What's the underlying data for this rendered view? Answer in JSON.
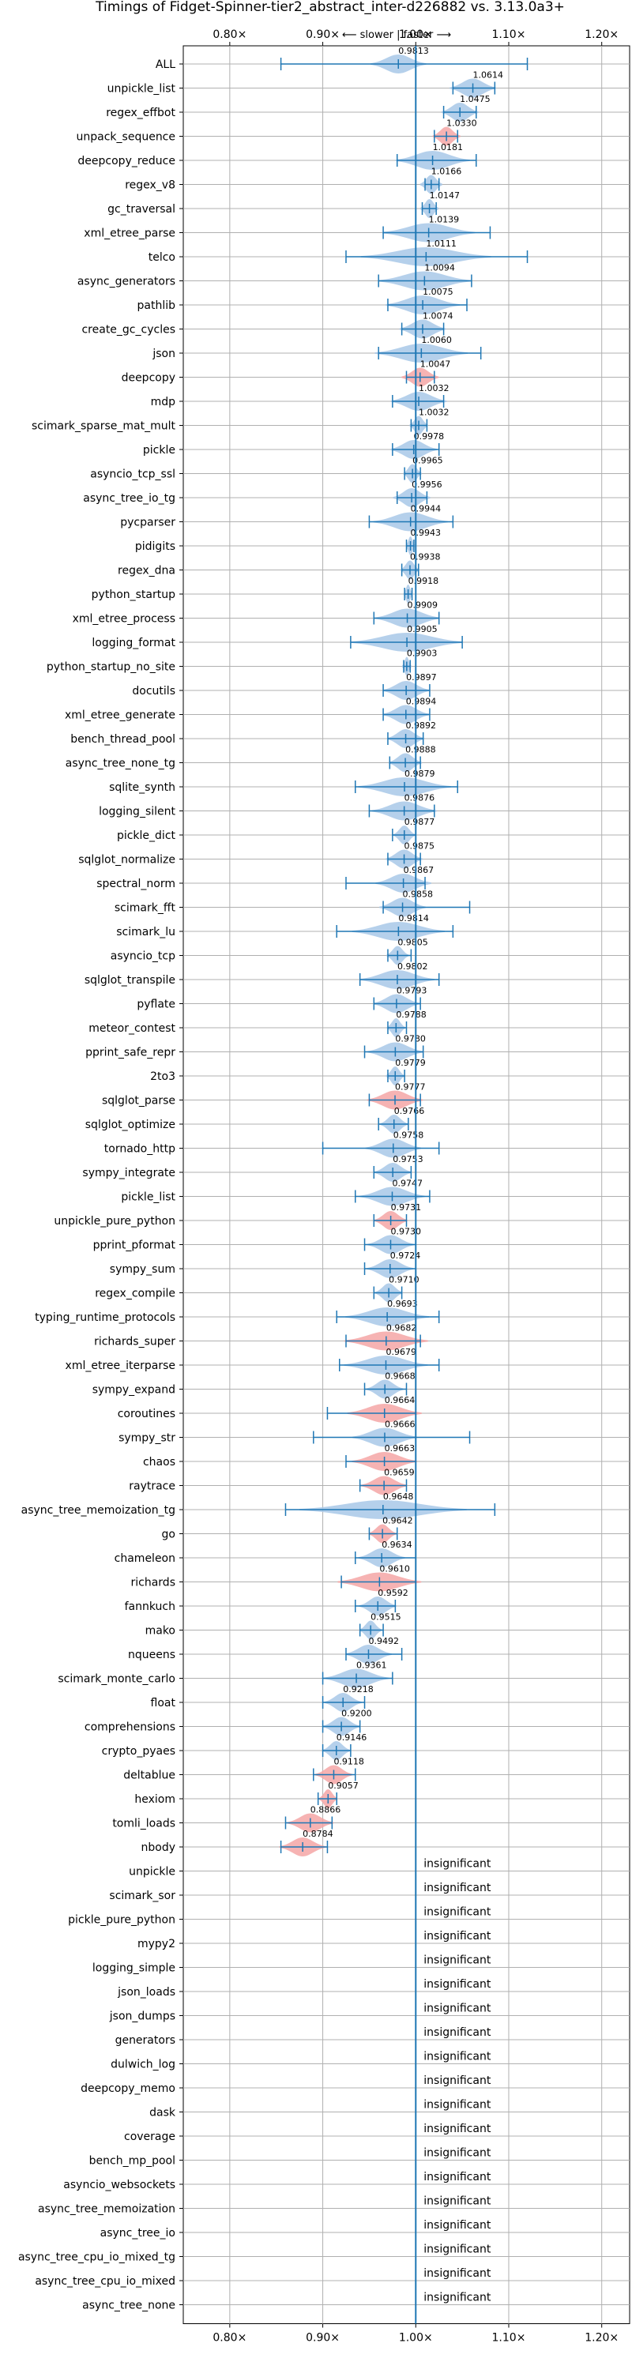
{
  "chart_data": {
    "type": "violin",
    "title": "Timings of Fidget-Spinner-tier2_abstract_inter-d226882 vs. 3.13.0a3+",
    "annotation": "⟵ slower | faster ⟶",
    "xlim": [
      0.75,
      1.23
    ],
    "xticks": [
      0.8,
      0.9,
      1.0,
      1.1,
      1.2
    ],
    "xtick_labels": [
      "0.80×",
      "0.90×",
      "1.00×",
      "1.10×",
      "1.20×"
    ],
    "reference_line": 1.0,
    "grid": true,
    "insignificant_label": "insignificant",
    "colors": {
      "faster": "#a8c8e8",
      "slower": "#f4a6a6",
      "line": "#1f77b4"
    },
    "benchmarks": [
      {
        "name": "ALL",
        "value": 0.9813,
        "lo": 0.855,
        "hi": 1.12,
        "spread": 0.03,
        "slower": false
      },
      {
        "name": "unpickle_list",
        "value": 1.0614,
        "lo": 1.04,
        "hi": 1.085,
        "spread": 0.025,
        "slower": false
      },
      {
        "name": "regex_effbot",
        "value": 1.0475,
        "lo": 1.03,
        "hi": 1.065,
        "spread": 0.02,
        "slower": false
      },
      {
        "name": "unpack_sequence",
        "value": 1.033,
        "lo": 1.02,
        "hi": 1.045,
        "spread": 0.015,
        "slower": true
      },
      {
        "name": "deepcopy_reduce",
        "value": 1.0181,
        "lo": 0.98,
        "hi": 1.065,
        "spread": 0.04,
        "slower": false
      },
      {
        "name": "regex_v8",
        "value": 1.0166,
        "lo": 1.01,
        "hi": 1.025,
        "spread": 0.012,
        "slower": false
      },
      {
        "name": "gc_traversal",
        "value": 1.0147,
        "lo": 1.007,
        "hi": 1.022,
        "spread": 0.01,
        "slower": false
      },
      {
        "name": "xml_etree_parse",
        "value": 1.0139,
        "lo": 0.965,
        "hi": 1.08,
        "spread": 0.05,
        "slower": false
      },
      {
        "name": "telco",
        "value": 1.0111,
        "lo": 0.925,
        "hi": 1.12,
        "spread": 0.07,
        "slower": false
      },
      {
        "name": "async_generators",
        "value": 1.0094,
        "lo": 0.96,
        "hi": 1.06,
        "spread": 0.05,
        "slower": false
      },
      {
        "name": "pathlib",
        "value": 1.0075,
        "lo": 0.97,
        "hi": 1.055,
        "spread": 0.04,
        "slower": false
      },
      {
        "name": "create_gc_cycles",
        "value": 1.0074,
        "lo": 0.985,
        "hi": 1.03,
        "spread": 0.025,
        "slower": false
      },
      {
        "name": "json",
        "value": 1.006,
        "lo": 0.96,
        "hi": 1.07,
        "spread": 0.05,
        "slower": false
      },
      {
        "name": "deepcopy",
        "value": 1.0047,
        "lo": 0.99,
        "hi": 1.02,
        "spread": 0.02,
        "slower": true
      },
      {
        "name": "mdp",
        "value": 1.0032,
        "lo": 0.975,
        "hi": 1.03,
        "spread": 0.03,
        "slower": false
      },
      {
        "name": "scimark_sparse_mat_mult",
        "value": 1.0032,
        "lo": 0.995,
        "hi": 1.012,
        "spread": 0.01,
        "slower": false
      },
      {
        "name": "pickle",
        "value": 0.9978,
        "lo": 0.975,
        "hi": 1.025,
        "spread": 0.025,
        "slower": false
      },
      {
        "name": "asyncio_tcp_ssl",
        "value": 0.9965,
        "lo": 0.988,
        "hi": 1.005,
        "spread": 0.01,
        "slower": false
      },
      {
        "name": "async_tree_io_tg",
        "value": 0.9956,
        "lo": 0.98,
        "hi": 1.012,
        "spread": 0.02,
        "slower": false
      },
      {
        "name": "pycparser",
        "value": 0.9944,
        "lo": 0.95,
        "hi": 1.04,
        "spread": 0.04,
        "slower": false
      },
      {
        "name": "pidigits",
        "value": 0.9943,
        "lo": 0.99,
        "hi": 0.998,
        "spread": 0.005,
        "slower": false
      },
      {
        "name": "regex_dna",
        "value": 0.9938,
        "lo": 0.985,
        "hi": 1.003,
        "spread": 0.01,
        "slower": false
      },
      {
        "name": "python_startup",
        "value": 0.9918,
        "lo": 0.988,
        "hi": 0.996,
        "spread": 0.005,
        "slower": false
      },
      {
        "name": "xml_etree_process",
        "value": 0.9909,
        "lo": 0.955,
        "hi": 1.025,
        "spread": 0.035,
        "slower": false
      },
      {
        "name": "logging_format",
        "value": 0.9905,
        "lo": 0.93,
        "hi": 1.05,
        "spread": 0.06,
        "slower": false
      },
      {
        "name": "python_startup_no_site",
        "value": 0.9903,
        "lo": 0.987,
        "hi": 0.994,
        "spread": 0.004,
        "slower": false
      },
      {
        "name": "docutils",
        "value": 0.9897,
        "lo": 0.965,
        "hi": 1.015,
        "spread": 0.025,
        "slower": false
      },
      {
        "name": "xml_etree_generate",
        "value": 0.9894,
        "lo": 0.965,
        "hi": 1.015,
        "spread": 0.025,
        "slower": false
      },
      {
        "name": "bench_thread_pool",
        "value": 0.9892,
        "lo": 0.97,
        "hi": 1.008,
        "spread": 0.02,
        "slower": false
      },
      {
        "name": "async_tree_none_tg",
        "value": 0.9888,
        "lo": 0.972,
        "hi": 1.005,
        "spread": 0.018,
        "slower": false
      },
      {
        "name": "sqlite_synth",
        "value": 0.9879,
        "lo": 0.935,
        "hi": 1.045,
        "spread": 0.05,
        "slower": false
      },
      {
        "name": "logging_silent",
        "value": 0.9876,
        "lo": 0.95,
        "hi": 1.02,
        "spread": 0.035,
        "slower": false
      },
      {
        "name": "pickle_dict",
        "value": 0.9877,
        "lo": 0.975,
        "hi": 1.0,
        "spread": 0.012,
        "slower": false
      },
      {
        "name": "sqlglot_normalize",
        "value": 0.9875,
        "lo": 0.97,
        "hi": 1.005,
        "spread": 0.02,
        "slower": false
      },
      {
        "name": "spectral_norm",
        "value": 0.9867,
        "lo": 0.925,
        "hi": 1.01,
        "spread": 0.03,
        "slower": false
      },
      {
        "name": "scimark_fft",
        "value": 0.9858,
        "lo": 0.965,
        "hi": 1.058,
        "spread": 0.025,
        "slower": false
      },
      {
        "name": "scimark_lu",
        "value": 0.9814,
        "lo": 0.915,
        "hi": 1.04,
        "spread": 0.05,
        "slower": false
      },
      {
        "name": "asyncio_tcp",
        "value": 0.9805,
        "lo": 0.97,
        "hi": 0.995,
        "spread": 0.012,
        "slower": false
      },
      {
        "name": "sqlglot_transpile",
        "value": 0.9802,
        "lo": 0.94,
        "hi": 1.025,
        "spread": 0.04,
        "slower": false
      },
      {
        "name": "pyflate",
        "value": 0.9793,
        "lo": 0.955,
        "hi": 1.005,
        "spread": 0.025,
        "slower": false
      },
      {
        "name": "meteor_contest",
        "value": 0.9788,
        "lo": 0.97,
        "hi": 0.99,
        "spread": 0.01,
        "slower": false
      },
      {
        "name": "pprint_safe_repr",
        "value": 0.978,
        "lo": 0.945,
        "hi": 1.008,
        "spread": 0.03,
        "slower": false
      },
      {
        "name": "2to3",
        "value": 0.9779,
        "lo": 0.97,
        "hi": 0.988,
        "spread": 0.01,
        "slower": false
      },
      {
        "name": "sqlglot_parse",
        "value": 0.9777,
        "lo": 0.95,
        "hi": 1.005,
        "spread": 0.03,
        "slower": true
      },
      {
        "name": "sqlglot_optimize",
        "value": 0.9766,
        "lo": 0.96,
        "hi": 0.992,
        "spread": 0.015,
        "slower": false
      },
      {
        "name": "tornado_http",
        "value": 0.9758,
        "lo": 0.9,
        "hi": 1.025,
        "spread": 0.03,
        "slower": false
      },
      {
        "name": "sympy_integrate",
        "value": 0.9753,
        "lo": 0.955,
        "hi": 0.995,
        "spread": 0.02,
        "slower": false
      },
      {
        "name": "pickle_list",
        "value": 0.9747,
        "lo": 0.935,
        "hi": 1.015,
        "spread": 0.035,
        "slower": false
      },
      {
        "name": "unpickle_pure_python",
        "value": 0.9731,
        "lo": 0.955,
        "hi": 0.99,
        "spread": 0.018,
        "slower": true
      },
      {
        "name": "pprint_pformat",
        "value": 0.973,
        "lo": 0.945,
        "hi": 1.0,
        "spread": 0.025,
        "slower": false
      },
      {
        "name": "sympy_sum",
        "value": 0.9724,
        "lo": 0.945,
        "hi": 1.0,
        "spread": 0.025,
        "slower": false
      },
      {
        "name": "regex_compile",
        "value": 0.971,
        "lo": 0.955,
        "hi": 0.985,
        "spread": 0.015,
        "slower": false
      },
      {
        "name": "typing_runtime_protocols",
        "value": 0.9693,
        "lo": 0.915,
        "hi": 1.025,
        "spread": 0.045,
        "slower": false
      },
      {
        "name": "richards_super",
        "value": 0.9682,
        "lo": 0.925,
        "hi": 1.005,
        "spread": 0.045,
        "slower": true
      },
      {
        "name": "xml_etree_iterparse",
        "value": 0.9679,
        "lo": 0.918,
        "hi": 1.025,
        "spread": 0.045,
        "slower": false
      },
      {
        "name": "sympy_expand",
        "value": 0.9668,
        "lo": 0.945,
        "hi": 0.99,
        "spread": 0.02,
        "slower": false
      },
      {
        "name": "coroutines",
        "value": 0.9664,
        "lo": 0.905,
        "hi": 1.0,
        "spread": 0.04,
        "slower": true
      },
      {
        "name": "sympy_str",
        "value": 0.9666,
        "lo": 0.89,
        "hi": 1.058,
        "spread": 0.035,
        "slower": false
      },
      {
        "name": "chaos",
        "value": 0.9663,
        "lo": 0.925,
        "hi": 1.0,
        "spread": 0.035,
        "slower": true
      },
      {
        "name": "raytrace",
        "value": 0.9659,
        "lo": 0.94,
        "hi": 0.99,
        "spread": 0.025,
        "slower": true
      },
      {
        "name": "async_tree_memoization_tg",
        "value": 0.9648,
        "lo": 0.86,
        "hi": 1.085,
        "spread": 0.09,
        "slower": false
      },
      {
        "name": "go",
        "value": 0.9642,
        "lo": 0.95,
        "hi": 0.98,
        "spread": 0.015,
        "slower": true
      },
      {
        "name": "chameleon",
        "value": 0.9634,
        "lo": 0.935,
        "hi": 1.0,
        "spread": 0.025,
        "slower": false
      },
      {
        "name": "richards",
        "value": 0.961,
        "lo": 0.92,
        "hi": 1.0,
        "spread": 0.045,
        "slower": true
      },
      {
        "name": "fannkuch",
        "value": 0.9592,
        "lo": 0.935,
        "hi": 0.978,
        "spread": 0.02,
        "slower": false
      },
      {
        "name": "mako",
        "value": 0.9515,
        "lo": 0.94,
        "hi": 0.965,
        "spread": 0.012,
        "slower": false
      },
      {
        "name": "nqueens",
        "value": 0.9492,
        "lo": 0.925,
        "hi": 0.985,
        "spread": 0.025,
        "slower": false
      },
      {
        "name": "scimark_monte_carlo",
        "value": 0.9361,
        "lo": 0.9,
        "hi": 0.975,
        "spread": 0.035,
        "slower": false
      },
      {
        "name": "float",
        "value": 0.9218,
        "lo": 0.9,
        "hi": 0.945,
        "spread": 0.02,
        "slower": false
      },
      {
        "name": "comprehensions",
        "value": 0.92,
        "lo": 0.9,
        "hi": 0.94,
        "spread": 0.02,
        "slower": false
      },
      {
        "name": "crypto_pyaes",
        "value": 0.9146,
        "lo": 0.9,
        "hi": 0.93,
        "spread": 0.015,
        "slower": false
      },
      {
        "name": "deltablue",
        "value": 0.9118,
        "lo": 0.89,
        "hi": 0.935,
        "spread": 0.02,
        "slower": true
      },
      {
        "name": "hexiom",
        "value": 0.9057,
        "lo": 0.895,
        "hi": 0.915,
        "spread": 0.01,
        "slower": true
      },
      {
        "name": "tomli_loads",
        "value": 0.8866,
        "lo": 0.86,
        "hi": 0.91,
        "spread": 0.025,
        "slower": true
      },
      {
        "name": "nbody",
        "value": 0.8784,
        "lo": 0.855,
        "hi": 0.905,
        "spread": 0.025,
        "slower": true
      }
    ],
    "insignificant": [
      "unpickle",
      "scimark_sor",
      "pickle_pure_python",
      "mypy2",
      "logging_simple",
      "json_loads",
      "json_dumps",
      "generators",
      "dulwich_log",
      "deepcopy_memo",
      "dask",
      "coverage",
      "bench_mp_pool",
      "asyncio_websockets",
      "async_tree_memoization",
      "async_tree_io",
      "async_tree_cpu_io_mixed_tg",
      "async_tree_cpu_io_mixed",
      "async_tree_none"
    ]
  }
}
